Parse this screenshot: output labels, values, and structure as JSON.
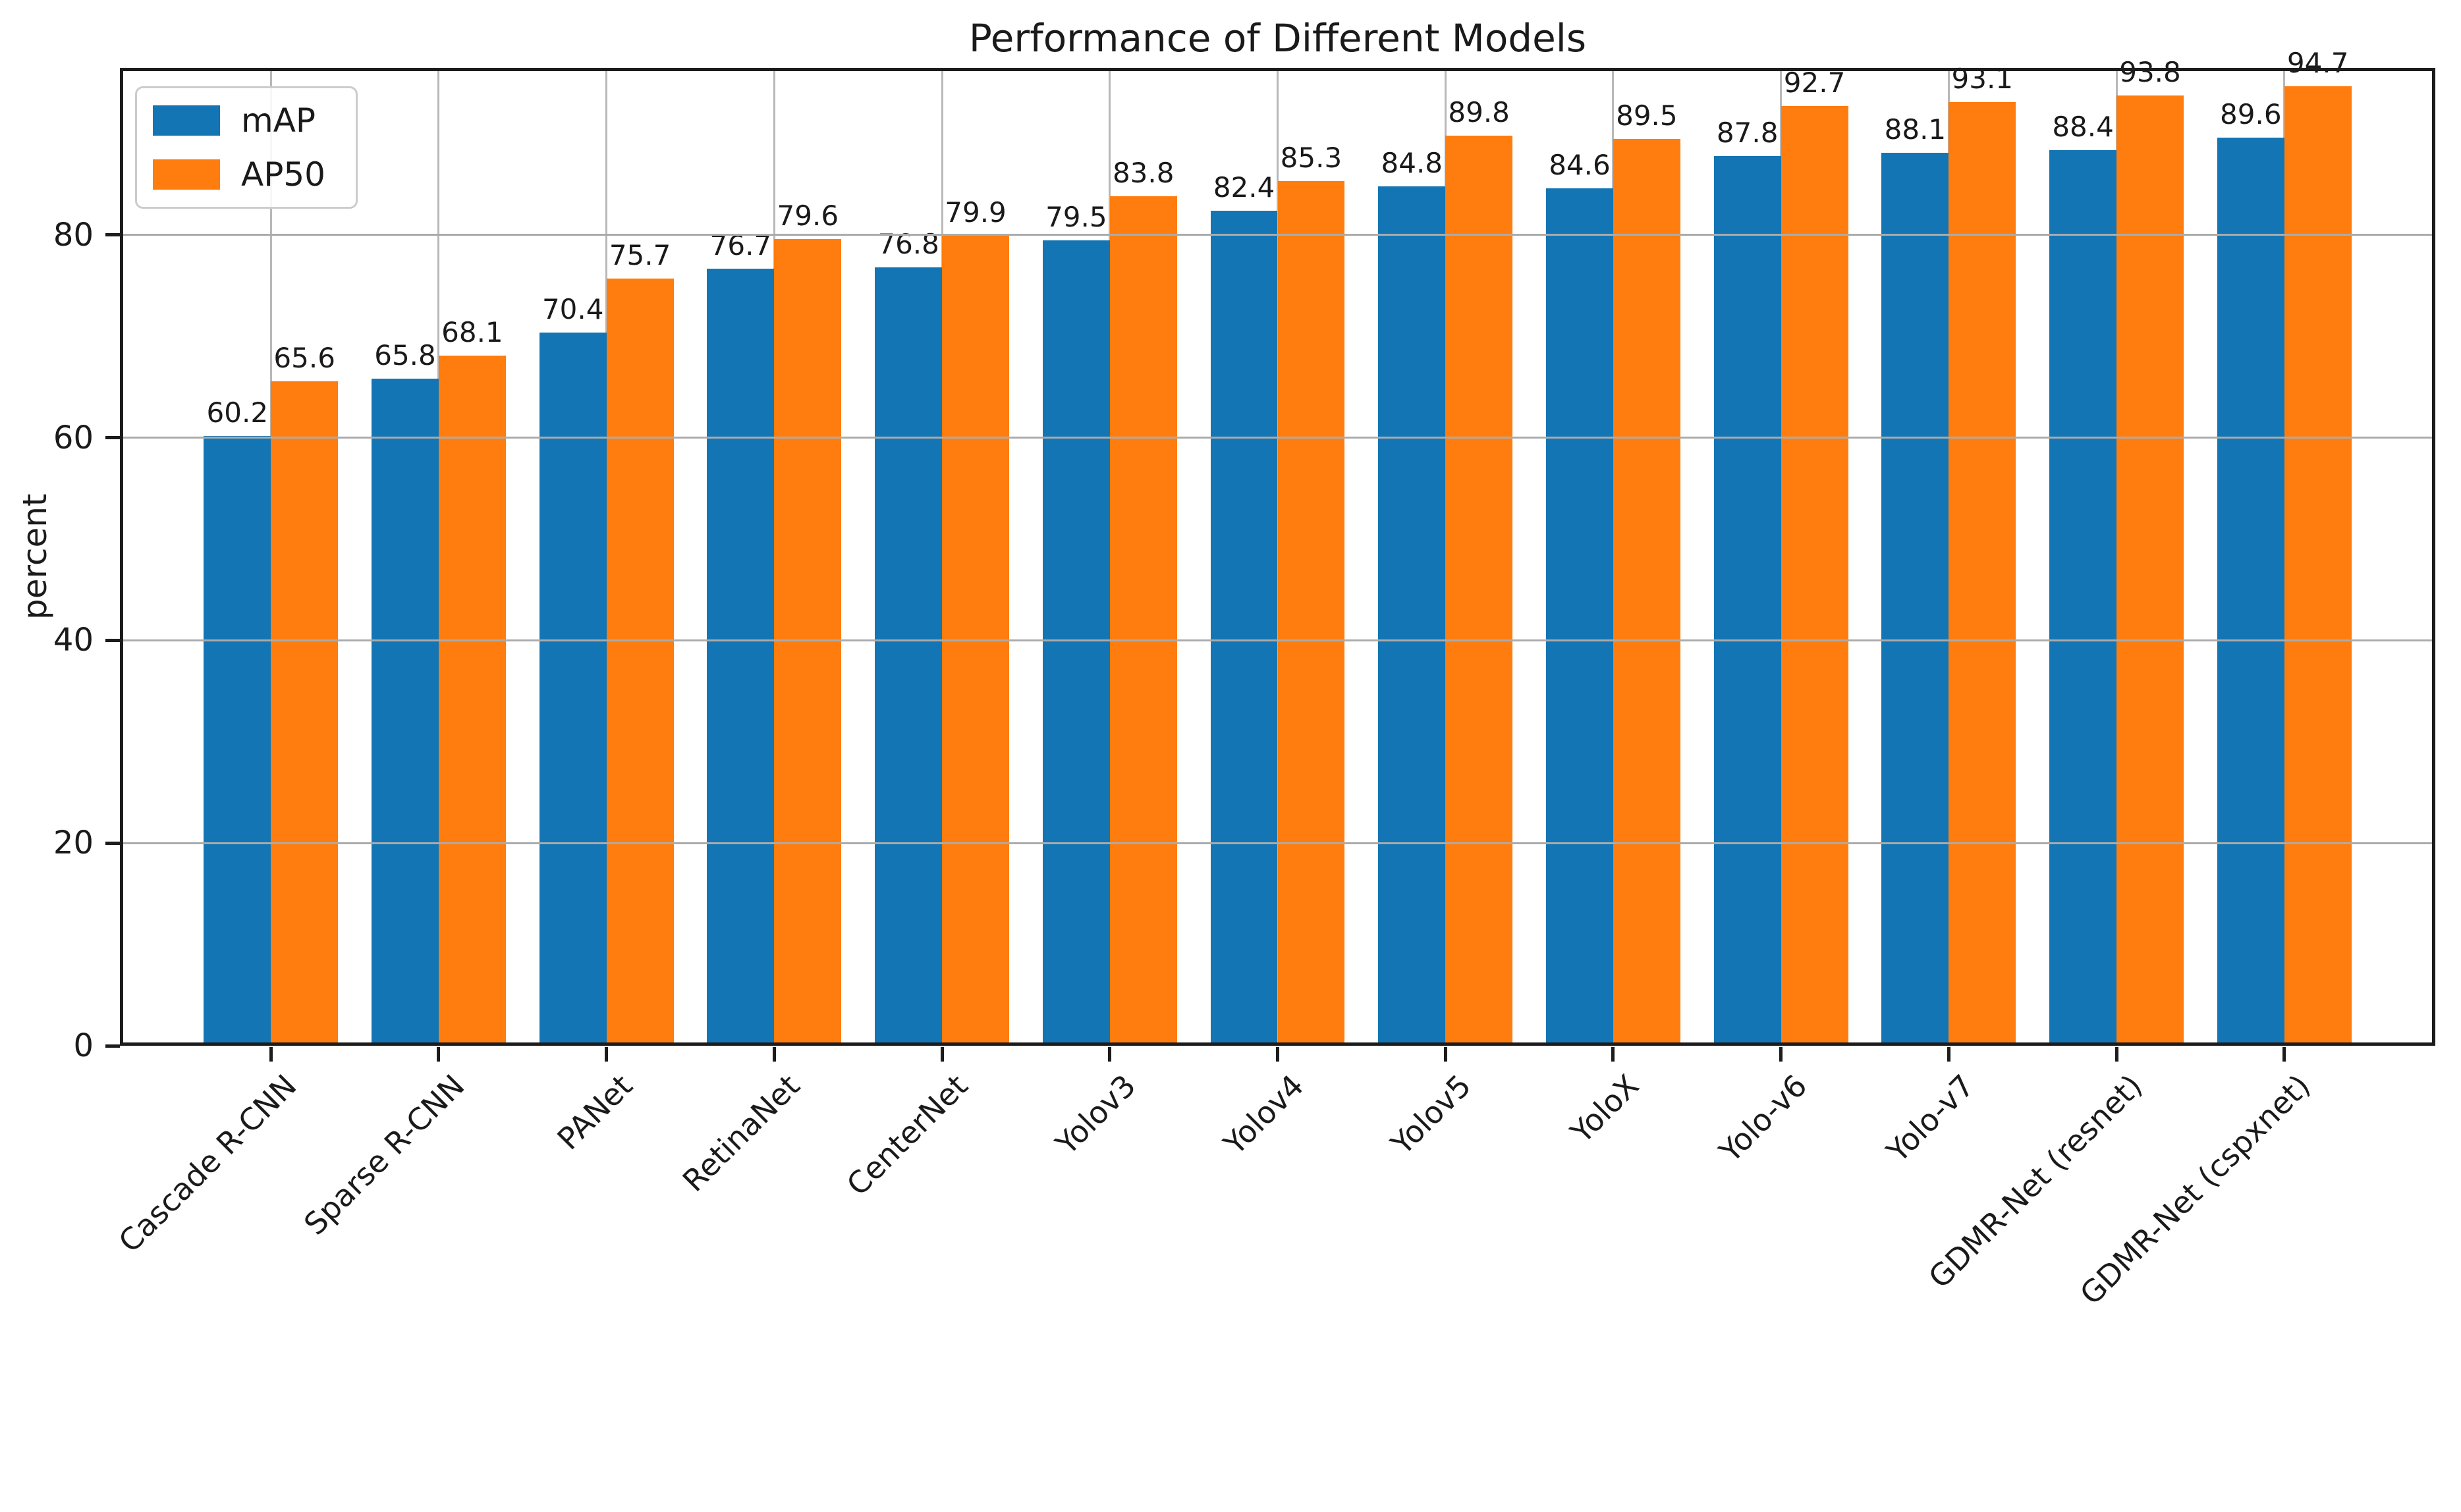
{
  "chart_data": {
    "type": "bar",
    "title": "Performance of Different Models",
    "xlabel": "",
    "ylabel": "percent",
    "categories": [
      "Cascade R-CNN",
      "Sparse R-CNN",
      "PANet",
      "RetinaNet",
      "CenterNet",
      "Yolov3",
      "Yolov4",
      "Yolov5",
      "YoloX",
      "Yolo-v6",
      "Yolo-v7",
      "GDMR-Net (resnet)",
      "GDMR-Net (cspxnet)"
    ],
    "series": [
      {
        "name": "mAP",
        "color": "#1375b4",
        "values": [
          60.2,
          65.8,
          70.4,
          76.7,
          76.8,
          79.5,
          82.4,
          84.8,
          84.6,
          87.8,
          88.1,
          88.4,
          89.6
        ]
      },
      {
        "name": "AP50",
        "color": "#ff7d0e",
        "values": [
          65.6,
          68.1,
          75.7,
          79.6,
          79.9,
          83.8,
          85.3,
          89.8,
          89.5,
          92.7,
          93.1,
          93.8,
          94.7
        ]
      }
    ],
    "yticks": [
      0,
      20,
      40,
      60,
      80
    ],
    "ylim": [
      0,
      96.5
    ],
    "grid": true,
    "bar_value_labels": true,
    "legend_position": "upper left",
    "value_label_decimals": 1
  }
}
